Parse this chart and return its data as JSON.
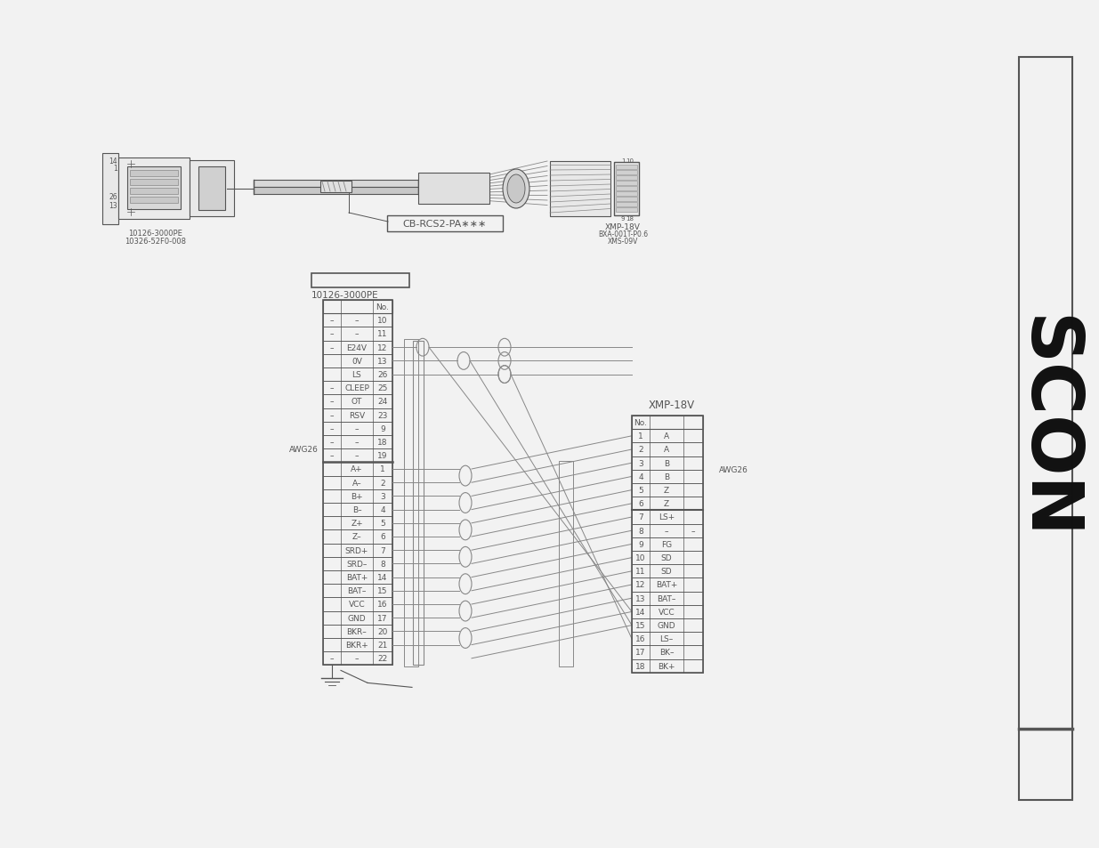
{
  "bg_color": "#f2f2f2",
  "line_color": "#555555",
  "cable_label": "CB-RCS2-PA∗∗∗",
  "left_connector_header": "10126-3000PE",
  "right_connector_header": "XMP-18V",
  "left_label2": "10326-52F0-008",
  "right_label2": "BXA-001T-P0.6",
  "right_label3": "XMS-09V",
  "awg_left": "AWG26",
  "awg_right": "AWG26",
  "left_rows": [
    [
      "–",
      "–",
      "10"
    ],
    [
      "–",
      "–",
      "11"
    ],
    [
      "–",
      "E24V",
      "12"
    ],
    [
      "",
      "0V",
      "13"
    ],
    [
      "",
      "LS",
      "26"
    ],
    [
      "–",
      "CLEEP",
      "25"
    ],
    [
      "–",
      "OT",
      "24"
    ],
    [
      "–",
      "RSV",
      "23"
    ],
    [
      "–",
      "–",
      "9"
    ],
    [
      "–",
      "–",
      "18"
    ],
    [
      "–",
      "–",
      "19"
    ],
    [
      "",
      "A+",
      "1"
    ],
    [
      "",
      "A–",
      "2"
    ],
    [
      "",
      "B+",
      "3"
    ],
    [
      "",
      "B–",
      "4"
    ],
    [
      "",
      "Z+",
      "5"
    ],
    [
      "",
      "Z–",
      "6"
    ],
    [
      "",
      "SRD+",
      "7"
    ],
    [
      "",
      "SRD–",
      "8"
    ],
    [
      "",
      "BAT+",
      "14"
    ],
    [
      "",
      "BAT–",
      "15"
    ],
    [
      "",
      "VCC",
      "16"
    ],
    [
      "",
      "GND",
      "17"
    ],
    [
      "",
      "BKR–",
      "20"
    ],
    [
      "",
      "BKR+",
      "21"
    ],
    [
      "–",
      "–",
      "22"
    ]
  ],
  "right_rows": [
    [
      "1",
      "A",
      ""
    ],
    [
      "2",
      "A",
      ""
    ],
    [
      "3",
      "B",
      ""
    ],
    [
      "4",
      "B",
      ""
    ],
    [
      "5",
      "Z",
      ""
    ],
    [
      "6",
      "Z",
      ""
    ],
    [
      "7",
      "LS+",
      ""
    ],
    [
      "8",
      "–",
      "–"
    ],
    [
      "9",
      "FG",
      ""
    ],
    [
      "10",
      "SD",
      ""
    ],
    [
      "11",
      "SD",
      ""
    ],
    [
      "12",
      "BAT+",
      ""
    ],
    [
      "13",
      "BAT–",
      ""
    ],
    [
      "14",
      "VCC",
      ""
    ],
    [
      "15",
      "GND",
      ""
    ],
    [
      "16",
      "LS–",
      ""
    ],
    [
      "17",
      "BK–",
      ""
    ],
    [
      "18",
      "BK+",
      ""
    ]
  ]
}
